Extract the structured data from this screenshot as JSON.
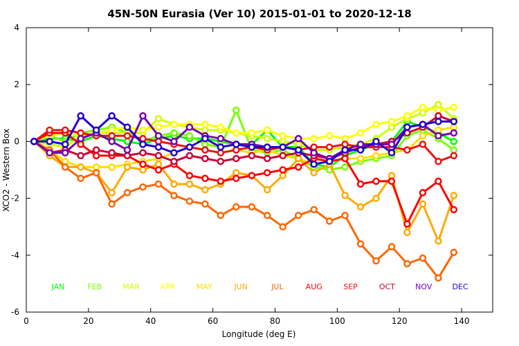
{
  "chart_data": {
    "type": "line",
    "title": "45N-50N Eurasia (Ver 10)   2015-01-01 to 2020-12-18",
    "xlabel": "Longitude (deg E)",
    "ylabel": "XCO2 - Western Box",
    "xlim": [
      0,
      150
    ],
    "ylim": [
      -6,
      4
    ],
    "xticks": [
      0,
      20,
      40,
      60,
      80,
      100,
      120,
      140
    ],
    "yticks": [
      -6,
      -4,
      -2,
      0,
      2,
      4
    ],
    "x": [
      2.5,
      7.5,
      12.5,
      17.5,
      22.5,
      27.5,
      32.5,
      37.5,
      42.5,
      47.5,
      52.5,
      57.5,
      62.5,
      67.5,
      72.5,
      77.5,
      82.5,
      87.5,
      92.5,
      97.5,
      102.5,
      107.5,
      112.5,
      117.5,
      122.5,
      127.5,
      132.5,
      137.5
    ],
    "legend_placement": "bottom",
    "series": [
      {
        "name": "JAN",
        "color": "#00ff00",
        "values": [
          0,
          0.1,
          0.1,
          0,
          0.2,
          0.1,
          0,
          -0.1,
          0.1,
          0.2,
          0.1,
          0.1,
          0,
          -0.1,
          -0.1,
          0.4,
          -0.2,
          -0.2,
          -0.8,
          -0.9,
          -0.5,
          -0.3,
          -0.1,
          0,
          0.7,
          0.5,
          0.3,
          0
        ]
      },
      {
        "name": "FEB",
        "color": "#77ff00",
        "values": [
          0,
          0.2,
          0,
          0.3,
          0.4,
          0.5,
          0.3,
          0,
          0.2,
          0.3,
          0.2,
          -0.1,
          -0.2,
          1.1,
          -0.3,
          -0.4,
          -0.3,
          -0.6,
          -0.9,
          -1.0,
          -0.9,
          -0.7,
          -0.6,
          -0.5,
          0.2,
          0.4,
          0.1,
          -0.3
        ]
      },
      {
        "name": "MAR",
        "color": "#ccff00",
        "values": [
          0,
          -0.1,
          -0.2,
          0.2,
          0.3,
          0.3,
          0.3,
          0.3,
          0.8,
          0.6,
          0.5,
          0.4,
          0.4,
          0.3,
          0.2,
          0.1,
          0,
          -0.1,
          -0.3,
          -0.3,
          -0.2,
          -0.1,
          0.1,
          0.5,
          0.8,
          1.0,
          1.3,
          0.8
        ]
      },
      {
        "name": "APR",
        "color": "#ffff00",
        "values": [
          0,
          0.2,
          0.3,
          0.2,
          0.3,
          0.4,
          0.5,
          0.4,
          0.5,
          0.6,
          0.6,
          0.6,
          0.5,
          0.3,
          0.3,
          0.4,
          0.2,
          0.1,
          0.1,
          0.2,
          0.1,
          0.3,
          0.6,
          0.7,
          0.9,
          1.2,
          1.1,
          1.2
        ]
      },
      {
        "name": "MAY",
        "color": "#ffdd00",
        "values": [
          0,
          -0.3,
          -0.7,
          -0.9,
          -0.9,
          -0.9,
          -0.8,
          -0.7,
          -0.6,
          -0.4,
          -0.2,
          -0.3,
          -0.4,
          -0.3,
          -0.4,
          -0.3,
          -0.5,
          -0.6,
          -0.8,
          -0.7,
          -0.6,
          -0.6,
          -0.5,
          -0.4,
          -0.3,
          0.2,
          0.4,
          0.5
        ]
      },
      {
        "name": "JUN",
        "color": "#ffaa00",
        "values": [
          0,
          -0.5,
          -0.9,
          -0.9,
          -1.1,
          -1.8,
          -0.9,
          -1.0,
          -0.8,
          -1.5,
          -1.5,
          -1.7,
          -1.5,
          -1.1,
          -1.2,
          -1.7,
          -1.2,
          -0.6,
          -1.1,
          -0.8,
          -1.9,
          -2.3,
          -2.0,
          -1.2,
          -3.2,
          -2.2,
          -3.5,
          -1.9
        ]
      },
      {
        "name": "JUL",
        "color": "#ff6600",
        "values": [
          0,
          -0.3,
          -0.9,
          -1.3,
          -1.1,
          -2.2,
          -1.8,
          -1.6,
          -1.5,
          -1.9,
          -2.1,
          -2.2,
          -2.6,
          -2.3,
          -2.3,
          -2.6,
          -3.0,
          -2.6,
          -2.4,
          -2.8,
          -2.6,
          -3.6,
          -4.2,
          -3.7,
          -4.3,
          -4.1,
          -4.8,
          -3.9
        ]
      },
      {
        "name": "AUG",
        "color": "#ff0000",
        "values": [
          0,
          0.3,
          0.3,
          -0.1,
          -0.5,
          -0.5,
          -0.5,
          -0.8,
          -1.0,
          -0.8,
          -1.2,
          -1.3,
          -1.4,
          -1.3,
          -1.2,
          -1.1,
          -1.0,
          -0.9,
          -0.6,
          -0.7,
          -0.6,
          -1.5,
          -1.4,
          -1.4,
          -2.9,
          -1.8,
          -1.4,
          -2.4
        ]
      },
      {
        "name": "SEP",
        "color": "#ee1111",
        "values": [
          0,
          0.4,
          0.4,
          0.3,
          0.2,
          0.2,
          0.2,
          0.1,
          0,
          -0.1,
          -0.2,
          -0.3,
          -0.4,
          -0.3,
          -0.2,
          -0.3,
          -0.2,
          -0.3,
          -0.2,
          -0.2,
          -0.1,
          -0.2,
          -0.2,
          -0.2,
          -0.3,
          -0.1,
          -0.7,
          -0.5
        ]
      },
      {
        "name": "OCT",
        "color": "#cc0033",
        "values": [
          0,
          -0.4,
          -0.3,
          -0.5,
          -0.3,
          -0.4,
          -0.5,
          -0.4,
          -0.5,
          -0.7,
          -0.5,
          -0.6,
          -0.7,
          -0.6,
          -0.5,
          -0.6,
          -0.5,
          -0.4,
          -0.5,
          -0.6,
          -0.4,
          -0.2,
          -0.1,
          0,
          0.3,
          0.5,
          0.9,
          0.7
        ]
      },
      {
        "name": "NOV",
        "color": "#7700aa",
        "values": [
          0,
          -0.4,
          -0.4,
          0.1,
          0.3,
          0,
          -0.3,
          0.9,
          0.2,
          0,
          0.5,
          0.2,
          0.1,
          -0.1,
          -0.1,
          -0.2,
          -0.2,
          0.1,
          -0.4,
          -0.6,
          -0.3,
          -0.1,
          -0.1,
          -0.1,
          0.5,
          0.6,
          0.2,
          0.3
        ]
      },
      {
        "name": "DEC",
        "color": "#2200cc",
        "values": [
          0,
          0,
          -0.1,
          0.9,
          0.4,
          0.9,
          0.5,
          -0.1,
          -0.2,
          -0.4,
          -0.2,
          0.1,
          -0.2,
          -0.1,
          -0.2,
          -0.2,
          -0.2,
          -0.3,
          -0.8,
          -0.7,
          -0.3,
          -0.3,
          0,
          -0.4,
          0.5,
          0.6,
          0.7,
          0.7
        ]
      }
    ]
  }
}
